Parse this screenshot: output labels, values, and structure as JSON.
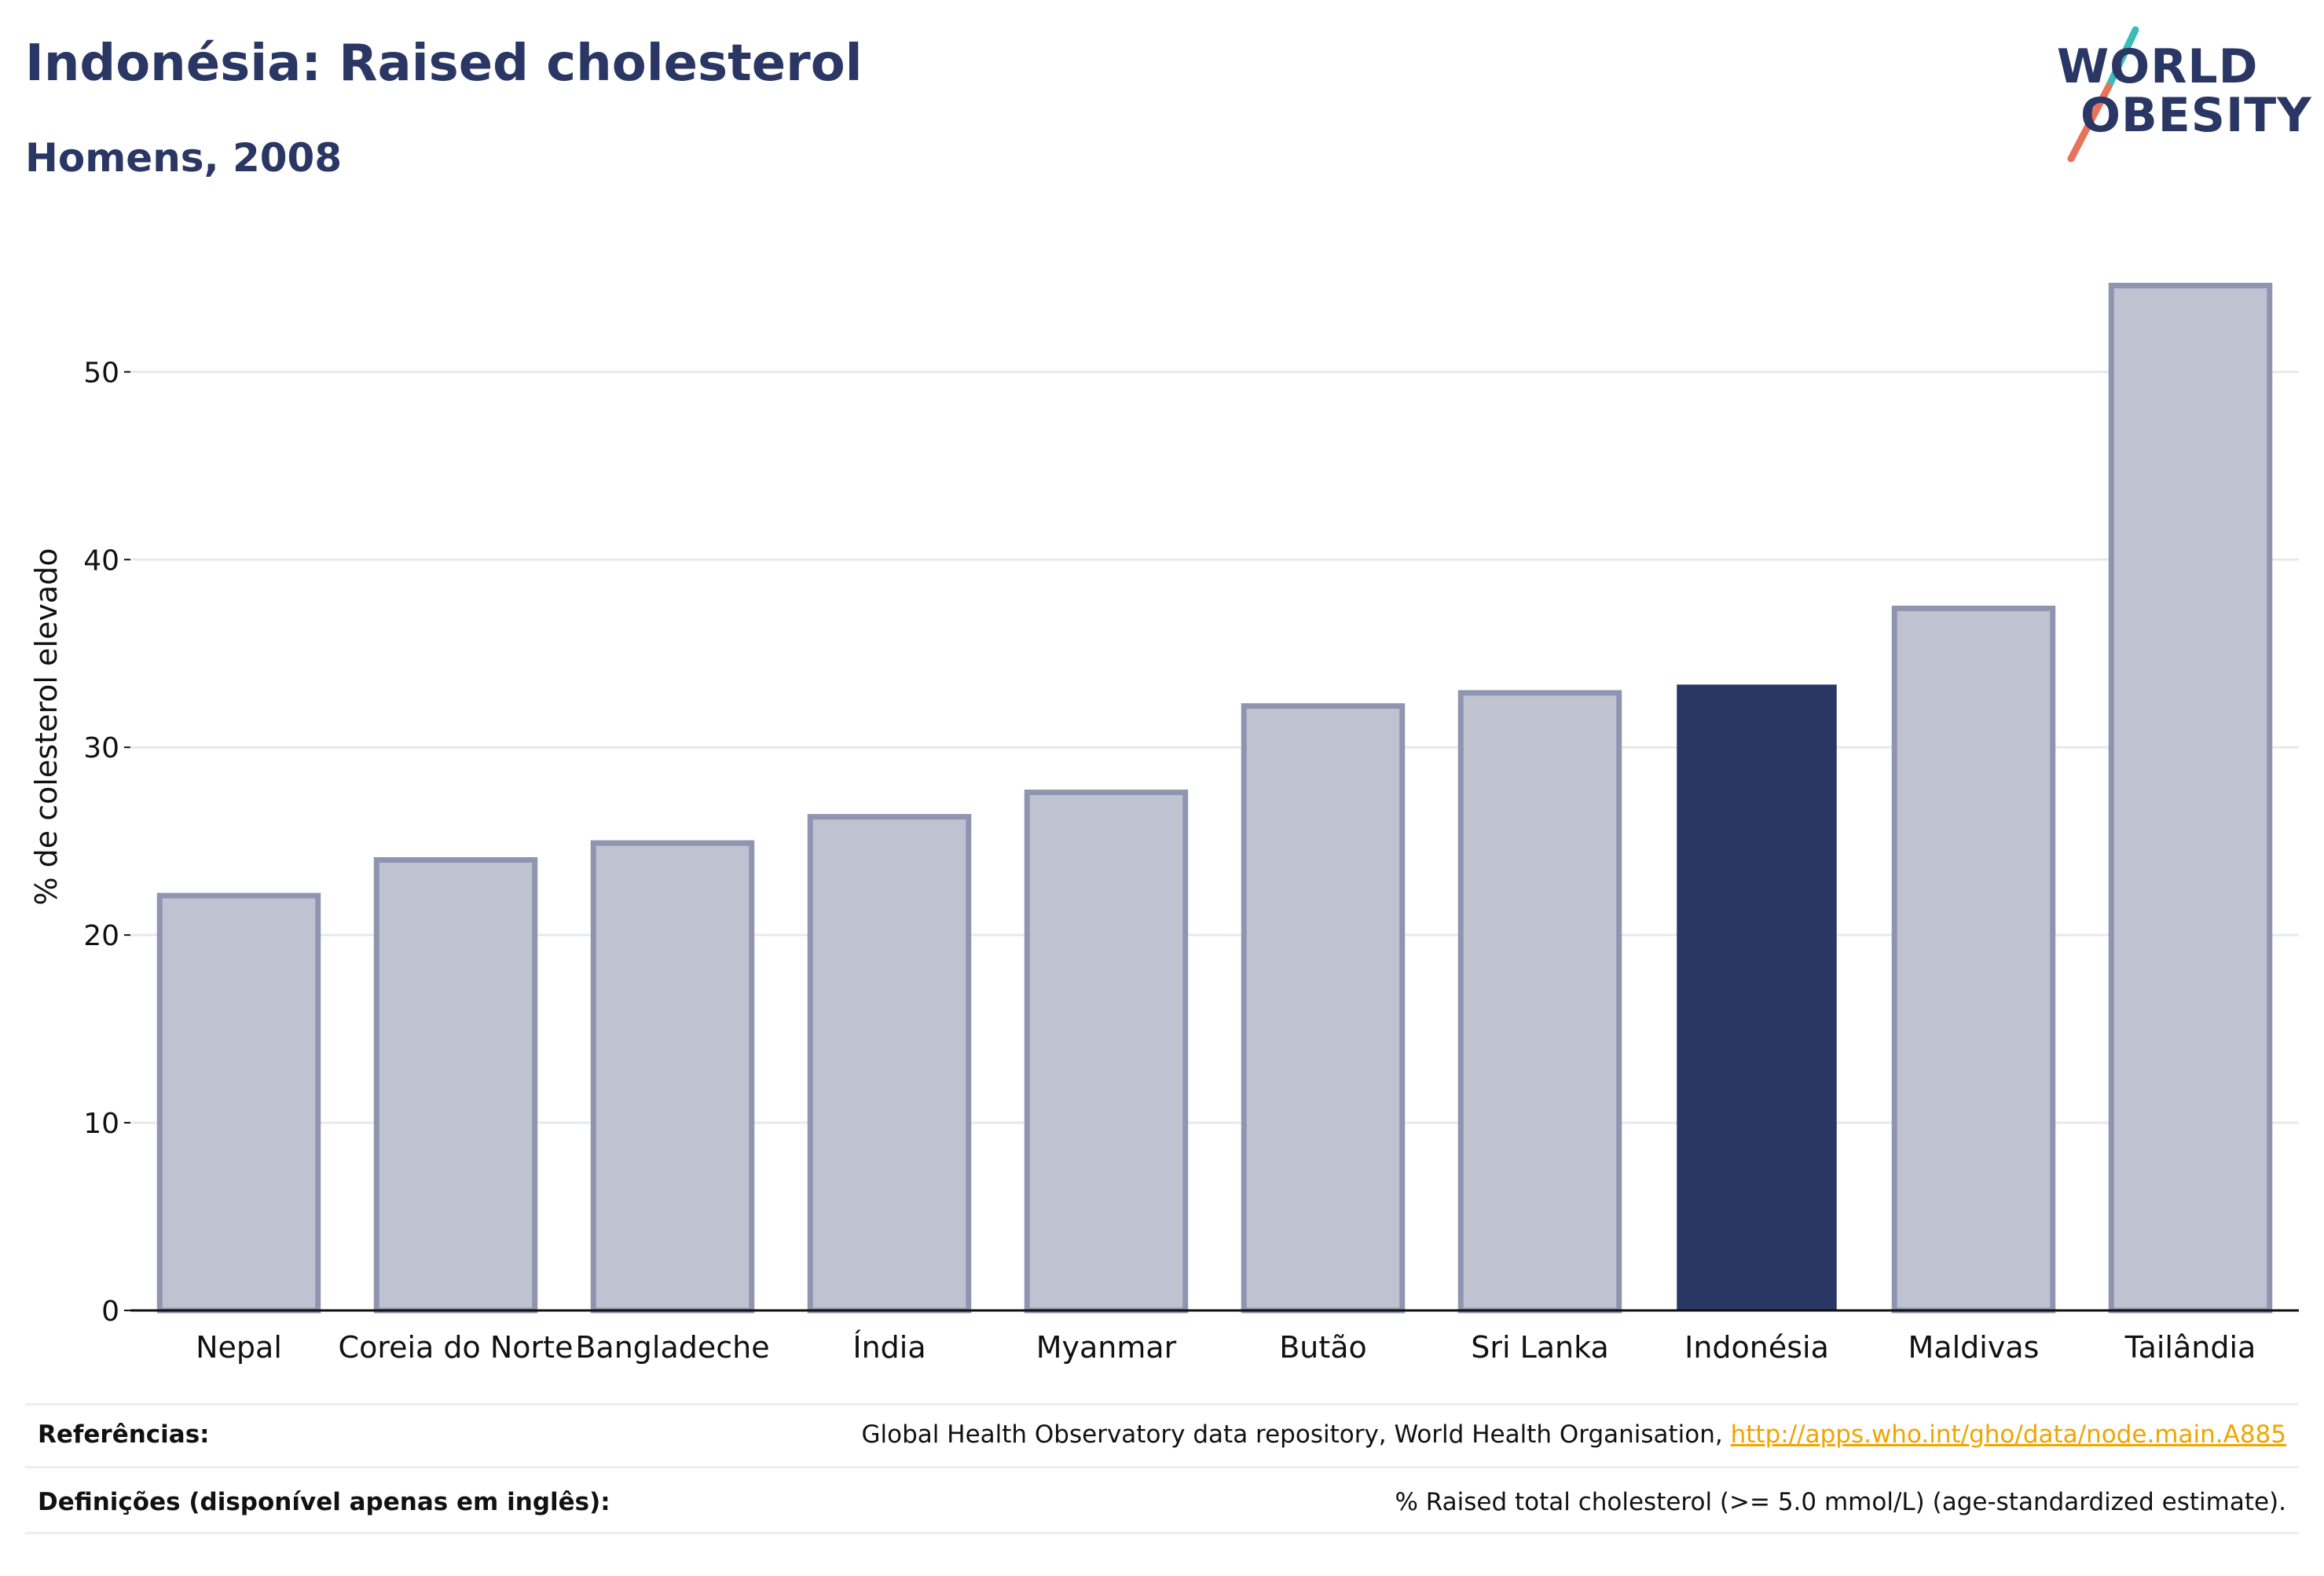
{
  "header": {
    "title": "Indonésia: Raised cholesterol",
    "subtitle": "Homens, 2008"
  },
  "logo": {
    "line1": "WORLD",
    "line2": "OBESITY",
    "slash_colors": [
      "#3bbcb6",
      "#e8735a"
    ]
  },
  "colors": {
    "highlight": "#2a3663",
    "bar_fill": "#bfc2d1",
    "bar_stroke": "#8f95b0",
    "grid": "#e8e9f0",
    "axis": "#111111"
  },
  "chart_data": {
    "type": "bar",
    "title": "Indonésia: Raised cholesterol",
    "subtitle": "Homens, 2008",
    "ylabel": "% de colesterol elevado",
    "xlabel": "",
    "categories": [
      "Nepal",
      "Coreia do Norte",
      "Bangladeche",
      "Índia",
      "Myanmar",
      "Butão",
      "Sri Lanka",
      "Indonésia",
      "Maldivas",
      "Tailândia"
    ],
    "values": [
      22.1,
      24.0,
      24.9,
      26.3,
      27.6,
      32.2,
      32.9,
      33.3,
      37.4,
      54.6
    ],
    "highlight": "Indonésia",
    "ylim": [
      0,
      56
    ],
    "yticks": [
      0,
      10,
      20,
      30,
      40,
      50
    ],
    "grid": true,
    "legend": "none"
  },
  "footer": {
    "references_label": "Referências:",
    "references_text": "Global Health Observatory data repository, World Health Organisation, ",
    "references_link": "http://apps.who.int/gho/data/node.main.A885",
    "definitions_label": "Definições (disponível apenas em inglês):",
    "definitions_text": "% Raised total cholesterol (>= 5.0 mmol/L) (age-standardized estimate)."
  }
}
